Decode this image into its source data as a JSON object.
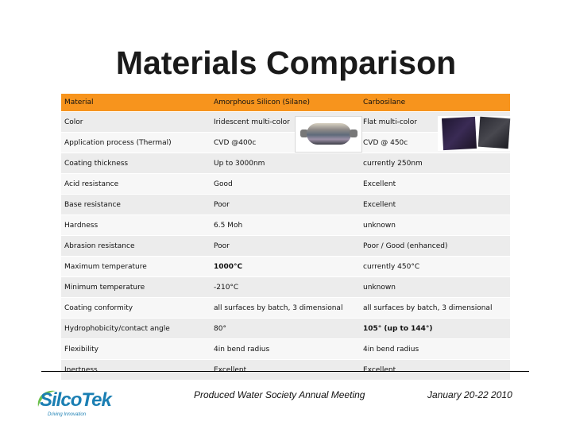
{
  "title": "Materials Comparison",
  "table": {
    "rows": [
      {
        "label": "Material",
        "a": "Amorphous Silicon (Silane)",
        "b": "Carbosilane"
      },
      {
        "label": "Color",
        "a": "Iridescent multi-color",
        "b": "Flat multi-color"
      },
      {
        "label": "Application process (Thermal)",
        "a": "CVD @400c",
        "b": "CVD @ 450c"
      },
      {
        "label": "Coating thickness",
        "a": "Up to 3000nm",
        "b": "currently 250nm"
      },
      {
        "label": "Acid resistance",
        "a": "Good",
        "b": "Excellent"
      },
      {
        "label": "Base resistance",
        "a": "Poor",
        "b": "Excellent"
      },
      {
        "label": "Hardness",
        "a": "6.5 Moh",
        "b": "unknown"
      },
      {
        "label": "Abrasion resistance",
        "a": "Poor",
        "b": "Poor / Good (enhanced)"
      },
      {
        "label": "Maximum temperature",
        "a": "1000°C",
        "b": "currently 450°C"
      },
      {
        "label": "Minimum temperature",
        "a": "-210°C",
        "b": "unknown"
      },
      {
        "label": "Coating conformity",
        "a": "all surfaces by batch, 3 dimensional",
        "b": "all surfaces by batch, 3 dimensional"
      },
      {
        "label": "Hydrophobicity/contact angle",
        "a": "80°",
        "b": "105° (up to 144°)"
      },
      {
        "label": "Flexibility",
        "a": "4in bend radius",
        "b": "4in bend radius"
      },
      {
        "label": "Inertness",
        "a": "Excellent",
        "b": "Excellent"
      }
    ]
  },
  "logo": {
    "name": "SilcoTek",
    "tagline": "Driving Innovation",
    "color": "#1b7fb3"
  },
  "footer": {
    "event": "Produced Water Society Annual Meeting",
    "date": "January 20-22 2010"
  },
  "colors": {
    "header": "#f7941d",
    "row_odd": "#ececec",
    "row_even": "#f7f7f7"
  }
}
